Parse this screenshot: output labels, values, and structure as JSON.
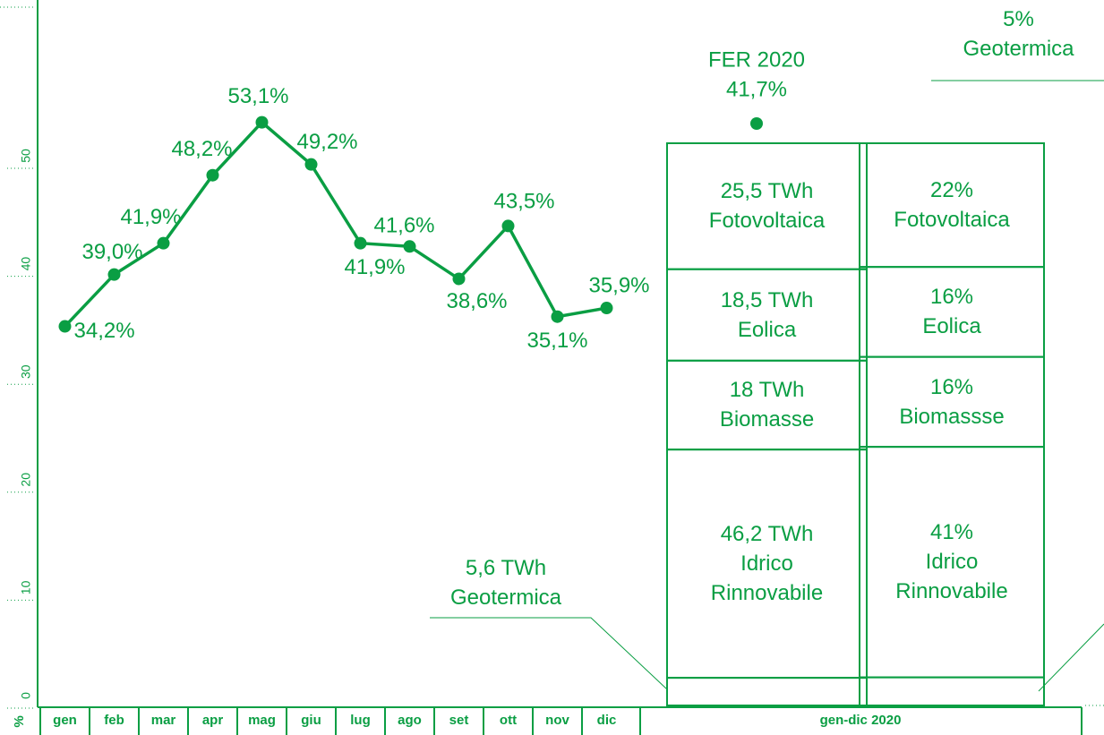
{
  "chart_data": {
    "type": "line",
    "y_label": "%",
    "categories": [
      "gen",
      "feb",
      "mar",
      "apr",
      "mag",
      "giu",
      "lug",
      "ago",
      "set",
      "ott",
      "nov",
      "dic"
    ],
    "values": [
      34.2,
      39.0,
      41.9,
      48.2,
      53.1,
      49.2,
      41.9,
      41.6,
      38.6,
      43.5,
      35.1,
      35.9
    ],
    "value_labels": [
      "34,2%",
      "39,0%",
      "41,9%",
      "48,2%",
      "53,1%",
      "49,2%",
      "41,9%",
      "41,6%",
      "38,6%",
      "43,5%",
      "35,1%",
      "35,9%"
    ],
    "color": "#0a9e43",
    "ylim": [
      0,
      60
    ],
    "yticks": [
      0,
      10,
      20,
      30,
      40,
      50
    ],
    "annotation": {
      "title": "FER 2020",
      "value": 41.7,
      "label": "41,7%"
    },
    "stack_category": "gen-dic 2020",
    "stacks": [
      {
        "segments": [
          {
            "name": "Geotermica",
            "value": 5.6,
            "label": "5,6 TWh"
          },
          {
            "name": "Idrico Rinnovabile",
            "value": 46.2,
            "label": "46,2 TWh"
          },
          {
            "name": "Biomasse",
            "value": 18,
            "label": "18 TWh"
          },
          {
            "name": "Eolica",
            "value": 18.5,
            "label": "18,5 TWh"
          },
          {
            "name": "Fotovoltaica",
            "value": 25.5,
            "label": "25,5 TWh"
          }
        ]
      },
      {
        "segments": [
          {
            "name": "Geotermica",
            "value": 5,
            "label": "5%"
          },
          {
            "name": "Idrico Rinnovabile",
            "value": 41,
            "label": "41%"
          },
          {
            "name": "Biomassse",
            "value": 16,
            "label": "16%"
          },
          {
            "name": "Eolica",
            "value": 16,
            "label": "16%"
          },
          {
            "name": "Fotovoltaica",
            "value": 22,
            "label": "22%"
          }
        ]
      }
    ]
  }
}
